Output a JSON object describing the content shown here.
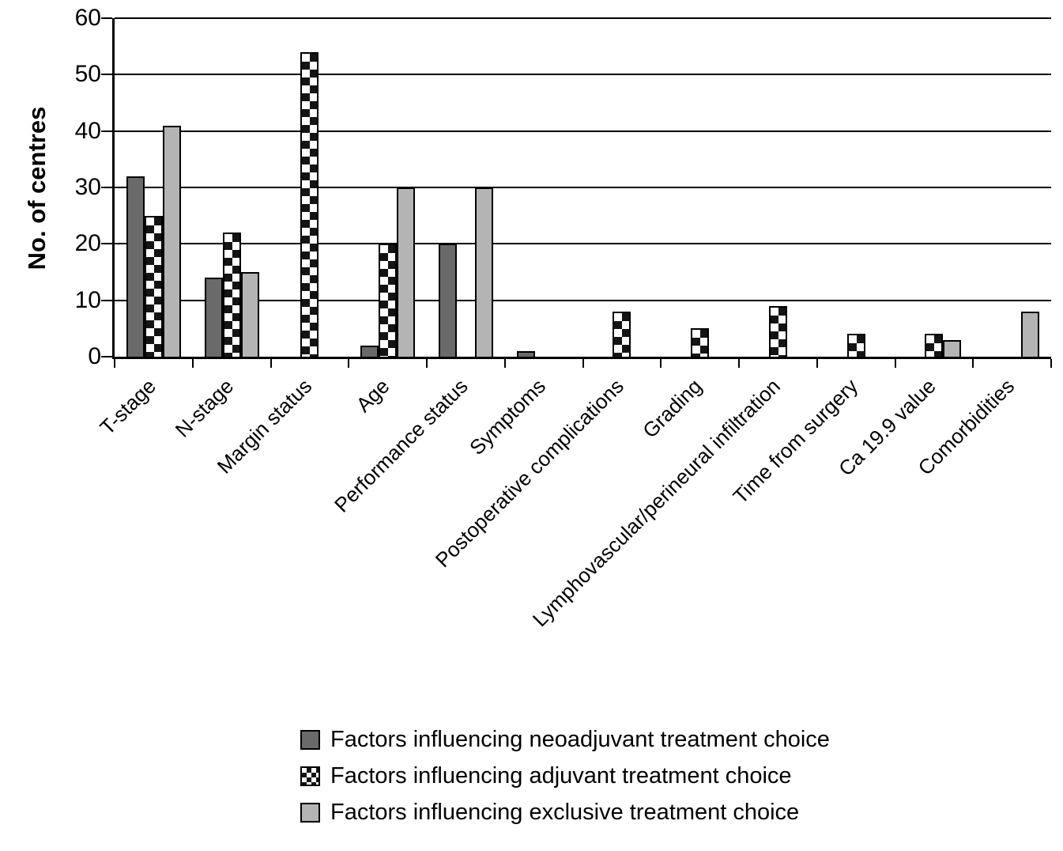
{
  "figure": {
    "background": "#ffffff",
    "axis_color": "#000000",
    "dark_gray": "#6a6a6a",
    "light_gray": "#b4b4b4",
    "checker_dark": "#141414"
  },
  "chart_data": {
    "type": "bar",
    "title": "",
    "xlabel": "",
    "ylabel": "No. of centres",
    "ylim": [
      0,
      60
    ],
    "yticks": [
      0,
      10,
      20,
      30,
      40,
      50,
      60
    ],
    "grid": "horizontal",
    "legend_position": "bottom",
    "categories": [
      "T-stage",
      "N-stage",
      "Margin status",
      "Age",
      "Performance status",
      "Symptoms",
      "Postoperative complications",
      "Grading",
      "Lymphovascular/perineural infiltration",
      "Time from surgery",
      "Ca 19.9 value",
      "Comorbidities"
    ],
    "series": [
      {
        "name": "Factors influencing neoadjuvant treatment choice",
        "swatch": "dark-gray",
        "color": "#6a6a6a",
        "values": [
          32,
          14,
          0,
          2,
          20,
          1,
          0,
          0,
          0,
          0,
          0,
          0
        ]
      },
      {
        "name": "Factors influencing adjuvant treatment choice",
        "swatch": "checker",
        "color": "#141414",
        "values": [
          25,
          22,
          54,
          20,
          0,
          0,
          8,
          5,
          9,
          4,
          4,
          0
        ]
      },
      {
        "name": "Factors influencing exclusive treatment choice",
        "swatch": "light-gray",
        "color": "#b4b4b4",
        "values": [
          41,
          15,
          0,
          30,
          30,
          0,
          0,
          0,
          0,
          0,
          3,
          8
        ]
      }
    ]
  }
}
